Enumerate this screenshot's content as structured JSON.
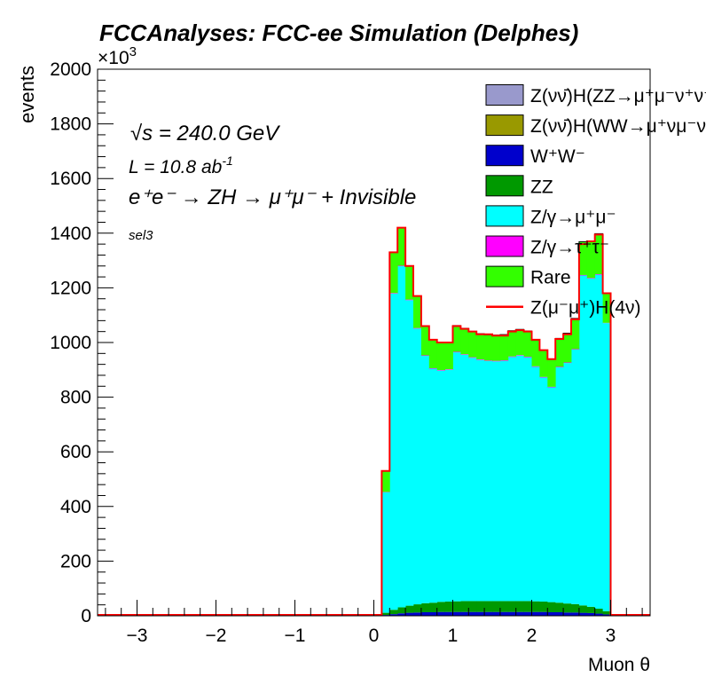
{
  "chart_data": {
    "type": "bar",
    "subtype": "stacked-histogram",
    "title": "FCCAnalyses: FCC-ee Simulation (Delphes)",
    "xlabel": "Muon θ",
    "ylabel": "events",
    "y_multiplier_label": "×10",
    "y_multiplier_exp": "3",
    "xlim": [
      -3.5,
      3.5
    ],
    "ylim": [
      0,
      2000
    ],
    "x_ticks": [
      -3,
      -2,
      -1,
      0,
      1,
      2,
      3
    ],
    "x_tick_labels": [
      "−3",
      "−2",
      "−1",
      "0",
      "1",
      "2",
      "3"
    ],
    "y_ticks": [
      0,
      200,
      400,
      600,
      800,
      1000,
      1200,
      1400,
      1600,
      1800,
      2000
    ],
    "y_tick_labels": [
      "0",
      "200",
      "400",
      "600",
      "800",
      "1000",
      "1200",
      "1400",
      "1600",
      "1800",
      "2000"
    ],
    "grid": false,
    "legend_position": "top-right",
    "annotations": {
      "energy": "√s = 240.0 GeV",
      "lumi_base": "L = 10.8 ab",
      "lumi_exp": "-1",
      "process": "e⁺e⁻ → ZH → μ⁺μ⁻ + Invisible",
      "selection": "sel3"
    },
    "bin_edges": [
      0.1,
      0.2,
      0.3,
      0.4,
      0.5,
      0.6,
      0.7,
      0.8,
      0.9,
      1.0,
      1.1,
      1.2,
      1.3,
      1.4,
      1.5,
      1.6,
      1.7,
      1.8,
      1.9,
      2.0,
      2.1,
      2.2,
      2.3,
      2.4,
      2.5,
      2.6,
      2.7,
      2.8,
      2.9,
      3.0
    ],
    "series": [
      {
        "name": "Z(νν̄)H(ZZ→μ⁺μ⁻ν⁺ν⁻)",
        "color": "#9999cc",
        "values": [
          0,
          0,
          0,
          0,
          0,
          0,
          0,
          0,
          0,
          0,
          0,
          0,
          0,
          0,
          0,
          0,
          0,
          0,
          0,
          0,
          0,
          0,
          0,
          0,
          0,
          0,
          0,
          0,
          0
        ]
      },
      {
        "name": "Z(νν̄)H(WW→μ⁺νμ⁻ν)",
        "color": "#999900",
        "values": [
          0,
          0,
          0,
          0,
          0,
          0,
          0,
          0,
          0,
          0,
          0,
          0,
          0,
          0,
          0,
          0,
          0,
          0,
          0,
          0,
          0,
          0,
          0,
          0,
          0,
          0,
          0,
          0,
          0
        ]
      },
      {
        "name": "W⁺W⁻",
        "color": "#0000cc",
        "values": [
          3,
          6,
          9,
          11,
          12,
          13,
          13,
          14,
          14,
          14,
          14,
          14,
          14,
          14,
          14,
          14,
          14,
          14,
          14,
          14,
          14,
          13,
          13,
          12,
          12,
          11,
          10,
          8,
          5
        ]
      },
      {
        "name": "ZZ",
        "color": "#009900",
        "values": [
          8,
          16,
          22,
          26,
          30,
          33,
          35,
          37,
          38,
          39,
          40,
          40,
          40,
          40,
          40,
          40,
          40,
          40,
          40,
          39,
          38,
          37,
          35,
          33,
          31,
          27,
          23,
          18,
          12
        ]
      },
      {
        "name": "Z/γ→μ⁺μ⁻",
        "color": "#00ffff",
        "values": [
          441,
          1157,
          1248,
          1118,
          1009,
          905,
          856,
          846,
          848,
          911,
          901,
          890,
          882,
          878,
          877,
          879,
          893,
          898,
          892,
          858,
          820,
          786,
          861,
          880,
          931,
          1207,
          1201,
          1222,
          1054
        ]
      },
      {
        "name": "Z/γ→τ⁺τ⁻",
        "color": "#ff00ff",
        "values": [
          1,
          2,
          2,
          2,
          2,
          2,
          2,
          2,
          2,
          2,
          2,
          2,
          2,
          2,
          2,
          2,
          2,
          2,
          2,
          2,
          2,
          2,
          2,
          2,
          2,
          2,
          2,
          2,
          1
        ]
      },
      {
        "name": "Rare",
        "color": "#33ff00",
        "values": [
          77,
          149,
          139,
          123,
          117,
          107,
          104,
          101,
          98,
          96,
          95,
          94,
          94,
          94,
          94,
          94,
          94,
          94,
          94,
          96,
          98,
          101,
          104,
          107,
          112,
          122,
          134,
          148,
          108
        ]
      }
    ],
    "signal": {
      "name": "Z(μ⁻μ⁺)H(4ν)",
      "color": "#ff0000",
      "values": [
        530,
        1330,
        1420,
        1280,
        1170,
        1060,
        1010,
        1000,
        1000,
        1060,
        1050,
        1040,
        1030,
        1030,
        1025,
        1025,
        1040,
        1045,
        1040,
        1010,
        972,
        939,
        1013,
        1030,
        1085,
        1360,
        1370,
        1395,
        1180
      ]
    }
  }
}
